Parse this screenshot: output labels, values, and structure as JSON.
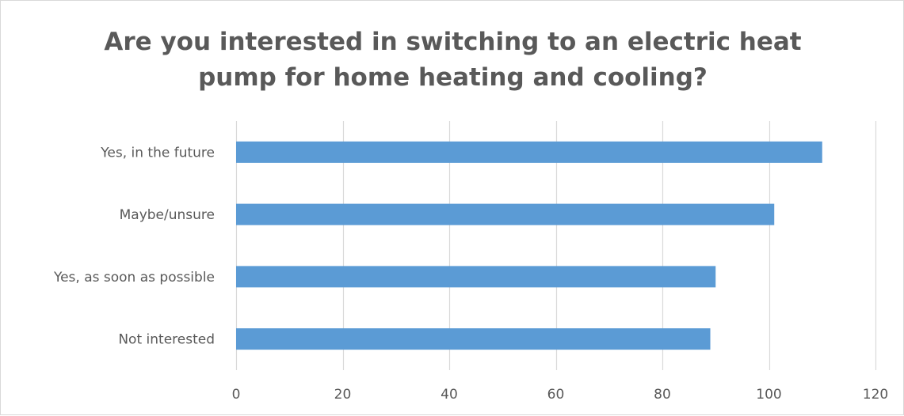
{
  "chart_data": {
    "type": "bar",
    "orientation": "horizontal",
    "title_lines": [
      "Are you interested in switching to an electric heat",
      "pump for home heating and cooling?"
    ],
    "categories": [
      "Yes, in the future",
      "Maybe/unsure",
      "Yes, as soon as possible",
      "Not interested"
    ],
    "values": [
      110,
      101,
      90,
      89
    ],
    "xlim": [
      0,
      120
    ],
    "x_ticks": [
      0,
      20,
      40,
      60,
      80,
      100,
      120
    ],
    "x_tick_labels": [
      "0",
      "20",
      "40",
      "60",
      "80",
      "100",
      "120"
    ],
    "grid": true,
    "legend": "none",
    "bar_color": "#5b9bd5",
    "grid_color": "#d9d9d9",
    "text_color": "#595959"
  }
}
